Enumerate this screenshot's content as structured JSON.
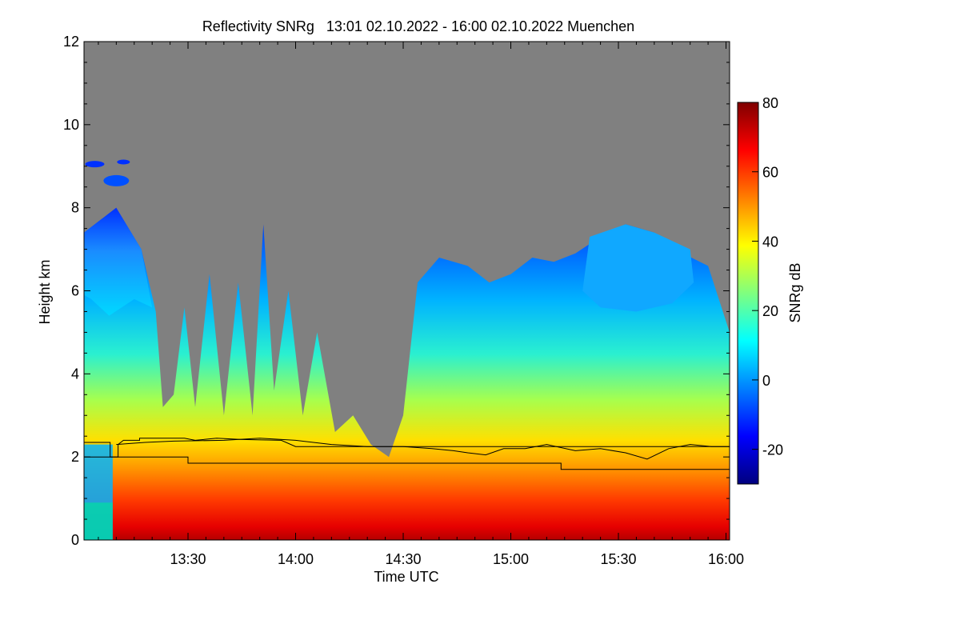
{
  "chart_data": {
    "type": "heatmap",
    "title": "Reflectivity SNRg   13:01 02.10.2022 - 16:00 02.10.2022 Muenchen",
    "xlabel": "Time UTC",
    "ylabel": "Height km",
    "x_range_minutes": [
      781,
      961
    ],
    "xticks": [
      {
        "minute": 810,
        "label": "13:30"
      },
      {
        "minute": 840,
        "label": "14:00"
      },
      {
        "minute": 870,
        "label": "14:30"
      },
      {
        "minute": 900,
        "label": "15:00"
      },
      {
        "minute": 930,
        "label": "15:30"
      },
      {
        "minute": 960,
        "label": "16:00"
      }
    ],
    "ylim": [
      0,
      12
    ],
    "yticks": [
      0,
      2,
      4,
      6,
      8,
      10,
      12
    ],
    "colorbar": {
      "label": "SNRg dB",
      "range": [
        -30,
        80
      ],
      "ticks": [
        -20,
        0,
        20,
        40,
        60,
        80
      ],
      "colormap": [
        "#00007f",
        "#0000ff",
        "#007fff",
        "#00ffff",
        "#7fff7f",
        "#ffff00",
        "#ff7f00",
        "#ff0000",
        "#7f0000"
      ]
    },
    "background_color": "#808080",
    "grid": false,
    "cloud_top_km": [
      {
        "t": 781,
        "top": 7.4
      },
      {
        "t": 790,
        "top": 8.0
      },
      {
        "t": 797,
        "top": 7.0
      },
      {
        "t": 801,
        "top": 5.5
      },
      {
        "t": 803,
        "top": 3.2
      },
      {
        "t": 806,
        "top": 3.5
      },
      {
        "t": 809,
        "top": 5.6
      },
      {
        "t": 812,
        "top": 3.2
      },
      {
        "t": 816,
        "top": 6.4
      },
      {
        "t": 820,
        "top": 3.0
      },
      {
        "t": 824,
        "top": 6.2
      },
      {
        "t": 828,
        "top": 3.0
      },
      {
        "t": 831,
        "top": 7.6
      },
      {
        "t": 834,
        "top": 3.6
      },
      {
        "t": 838,
        "top": 6.0
      },
      {
        "t": 842,
        "top": 3.0
      },
      {
        "t": 846,
        "top": 5.0
      },
      {
        "t": 851,
        "top": 2.6
      },
      {
        "t": 856,
        "top": 3.0
      },
      {
        "t": 861,
        "top": 2.3
      },
      {
        "t": 866,
        "top": 2.0
      },
      {
        "t": 870,
        "top": 3.0
      },
      {
        "t": 874,
        "top": 6.2
      },
      {
        "t": 880,
        "top": 6.8
      },
      {
        "t": 888,
        "top": 6.6
      },
      {
        "t": 894,
        "top": 6.2
      },
      {
        "t": 900,
        "top": 6.4
      },
      {
        "t": 906,
        "top": 6.8
      },
      {
        "t": 912,
        "top": 6.7
      },
      {
        "t": 918,
        "top": 6.9
      },
      {
        "t": 925,
        "top": 7.3
      },
      {
        "t": 932,
        "top": 7.6
      },
      {
        "t": 940,
        "top": 7.4
      },
      {
        "t": 948,
        "top": 6.9
      },
      {
        "t": 955,
        "top": 6.6
      },
      {
        "t": 961,
        "top": 5.0
      }
    ],
    "melting_layer_km": [
      {
        "t": 790,
        "h": 2.3
      },
      {
        "t": 798,
        "h": 2.35
      },
      {
        "t": 806,
        "h": 2.38
      },
      {
        "t": 820,
        "h": 2.4
      },
      {
        "t": 830,
        "h": 2.45
      },
      {
        "t": 840,
        "h": 2.4
      },
      {
        "t": 850,
        "h": 2.3
      },
      {
        "t": 860,
        "h": 2.25
      },
      {
        "t": 870,
        "h": 2.25
      },
      {
        "t": 878,
        "h": 2.2
      },
      {
        "t": 884,
        "h": 2.15
      },
      {
        "t": 888,
        "h": 2.1
      },
      {
        "t": 893,
        "h": 2.05
      },
      {
        "t": 898,
        "h": 2.2
      },
      {
        "t": 904,
        "h": 2.2
      },
      {
        "t": 910,
        "h": 2.3
      },
      {
        "t": 918,
        "h": 2.15
      },
      {
        "t": 925,
        "h": 2.2
      },
      {
        "t": 932,
        "h": 2.1
      },
      {
        "t": 938,
        "h": 1.95
      },
      {
        "t": 944,
        "h": 2.2
      },
      {
        "t": 950,
        "h": 2.3
      },
      {
        "t": 956,
        "h": 2.25
      },
      {
        "t": 961,
        "h": 2.25
      }
    ],
    "lines": [
      {
        "name": "upper",
        "points": [
          [
            781,
            2.35
          ],
          [
            788.3,
            2.35
          ],
          [
            788.3,
            2.0
          ],
          [
            790.5,
            2.0
          ],
          [
            790.5,
            2.3
          ],
          [
            792,
            2.4
          ],
          [
            796.5,
            2.4
          ],
          [
            796.5,
            2.45
          ],
          [
            808,
            2.45
          ],
          [
            809,
            2.45
          ],
          [
            812,
            2.4
          ],
          [
            818,
            2.45
          ],
          [
            825,
            2.42
          ],
          [
            836,
            2.4
          ],
          [
            840,
            2.25
          ],
          [
            870,
            2.25
          ],
          [
            961,
            2.25
          ]
        ]
      },
      {
        "name": "lower",
        "points": [
          [
            781,
            2.35
          ],
          [
            781,
            2.0
          ],
          [
            810,
            2.0
          ],
          [
            810,
            1.85
          ],
          [
            914,
            1.85
          ],
          [
            914,
            1.7
          ],
          [
            961,
            1.7
          ]
        ]
      }
    ]
  }
}
